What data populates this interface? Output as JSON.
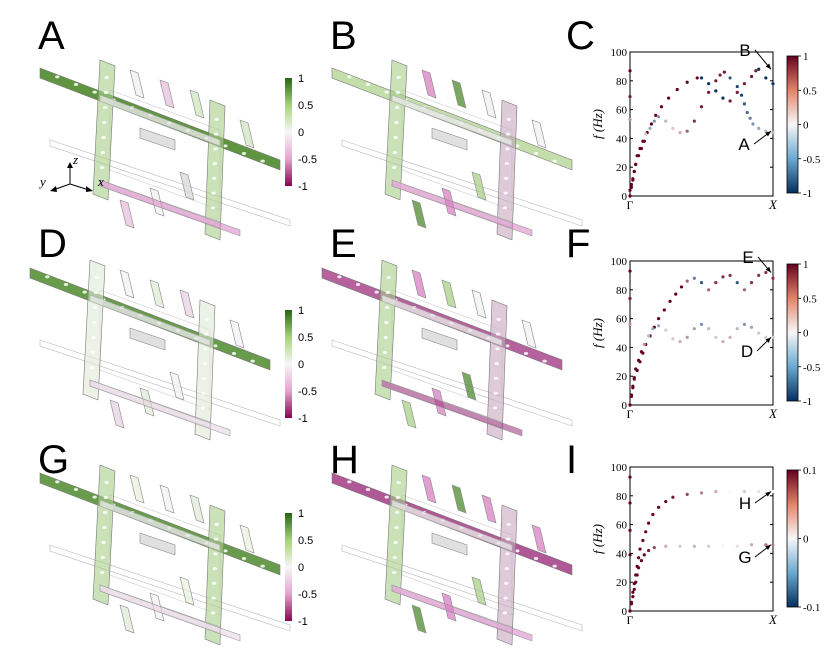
{
  "panels": [
    {
      "letter": "A",
      "kind": "mode"
    },
    {
      "letter": "B",
      "kind": "mode"
    },
    {
      "letter": "C",
      "kind": "chart"
    },
    {
      "letter": "D",
      "kind": "mode"
    },
    {
      "letter": "E",
      "kind": "mode"
    },
    {
      "letter": "F",
      "kind": "chart"
    },
    {
      "letter": "G",
      "kind": "mode"
    },
    {
      "letter": "H",
      "kind": "mode"
    },
    {
      "letter": "I",
      "kind": "chart"
    }
  ],
  "axes_triad": {
    "z": "z",
    "y": "y",
    "x": "x"
  },
  "mode_colorbar": {
    "ticks": [
      "1",
      "0.5",
      "0",
      "-0.5",
      "-1"
    ],
    "colors": {
      "high": "#276419",
      "mid": "#f7f7f7",
      "low": "#8e0152"
    }
  },
  "chart_data": [
    {
      "type": "scatter",
      "panel": "C",
      "ylabel": "f (Hz)",
      "x_ticks": [
        "Γ",
        "X"
      ],
      "y_ticks": [
        "0",
        "20",
        "40",
        "60",
        "80",
        "100"
      ],
      "ylim": [
        0,
        100
      ],
      "colorbar": {
        "ticks": [
          "1",
          "0.5",
          "0",
          "-0.5",
          "-1"
        ],
        "range": [
          -1,
          1
        ],
        "colors": {
          "high": "#67001f",
          "mid": "#f7f7f7",
          "low": "#053061"
        }
      },
      "series": [
        {
          "points": [
            [
              0.0,
              0,
              1
            ],
            [
              0.0,
              4,
              1
            ],
            [
              0.01,
              8,
              1
            ],
            [
              0.02,
              12,
              1
            ],
            [
              0.03,
              17,
              1
            ],
            [
              0.04,
              22,
              1
            ],
            [
              0.06,
              28,
              1
            ],
            [
              0.08,
              33,
              1
            ],
            [
              0.1,
              38,
              1
            ],
            [
              0.12,
              44,
              1
            ],
            [
              0.15,
              50,
              1
            ],
            [
              0.18,
              56,
              1
            ],
            [
              0.22,
              62,
              1
            ],
            [
              0.27,
              68,
              1
            ],
            [
              0.33,
              74,
              1
            ],
            [
              0.4,
              79,
              1
            ],
            [
              0.47,
              82,
              1
            ],
            [
              0.5,
              82,
              -1
            ],
            [
              0.55,
              78,
              -1
            ],
            [
              0.6,
              73,
              -1
            ],
            [
              0.65,
              68,
              -1
            ],
            [
              0.7,
              66,
              0.9
            ],
            [
              0.75,
              72,
              0.9
            ],
            [
              0.8,
              78,
              0.9
            ],
            [
              0.85,
              83,
              0.9
            ],
            [
              0.88,
              87,
              0.9
            ],
            [
              0.9,
              88,
              -1
            ],
            [
              0.95,
              82,
              -1
            ],
            [
              1.0,
              78,
              -1
            ]
          ]
        },
        {
          "points": [
            [
              0.0,
              0,
              1
            ],
            [
              0.01,
              6,
              1
            ],
            [
              0.02,
              11,
              1
            ],
            [
              0.03,
              17,
              1
            ],
            [
              0.04,
              22,
              1
            ],
            [
              0.05,
              28,
              1
            ],
            [
              0.07,
              33,
              1
            ],
            [
              0.09,
              38,
              1
            ],
            [
              0.11,
              43,
              0.2
            ],
            [
              0.14,
              47,
              -0.4
            ],
            [
              0.17,
              52,
              -0.5
            ],
            [
              0.2,
              55,
              -0.5
            ],
            [
              0.25,
              52,
              -0.3
            ],
            [
              0.3,
              47,
              0.2
            ],
            [
              0.35,
              44,
              0.3
            ],
            [
              0.4,
              45,
              0.6
            ],
            [
              0.45,
              52,
              0.8
            ],
            [
              0.5,
              62,
              0.9
            ],
            [
              0.55,
              72,
              0.9
            ],
            [
              0.6,
              80,
              0.9
            ],
            [
              0.63,
              84,
              0.9
            ],
            [
              0.66,
              86,
              0.9
            ],
            [
              0.7,
              82,
              -0.8
            ],
            [
              0.75,
              76,
              -0.9
            ],
            [
              0.78,
              70,
              -0.9
            ],
            [
              0.8,
              64,
              -0.8
            ],
            [
              0.82,
              58,
              -0.7
            ],
            [
              0.84,
              54,
              -0.6
            ],
            [
              0.86,
              50,
              -0.5
            ],
            [
              0.9,
              47,
              -0.4
            ],
            [
              0.95,
              45,
              -0.3
            ],
            [
              1.0,
              44,
              -0.3
            ]
          ]
        },
        {
          "points": [
            [
              0.0,
              87,
              1
            ],
            [
              0.0,
              69,
              0.9
            ],
            [
              0.0,
              53,
              0.4
            ]
          ]
        }
      ],
      "annotations": [
        {
          "label": "B",
          "target": [
            1.0,
            88
          ]
        },
        {
          "label": "A",
          "target": [
            1.0,
            45
          ]
        }
      ]
    },
    {
      "type": "scatter",
      "panel": "F",
      "ylabel": "f (Hz)",
      "x_ticks": [
        "Γ",
        "X"
      ],
      "y_ticks": [
        "0",
        "20",
        "40",
        "60",
        "80",
        "100"
      ],
      "ylim": [
        0,
        100
      ],
      "colorbar": {
        "ticks": [
          "1",
          "0.5",
          "0",
          "-0.5",
          "-1"
        ],
        "range": [
          -1,
          1
        ],
        "colors": {
          "high": "#67001f",
          "mid": "#f7f7f7",
          "low": "#053061"
        }
      },
      "series": [
        {
          "points": [
            [
              0.0,
              0,
              1
            ],
            [
              0.01,
              6,
              1
            ],
            [
              0.02,
              12,
              1
            ],
            [
              0.03,
              18,
              1
            ],
            [
              0.05,
              24,
              1
            ],
            [
              0.07,
              30,
              1
            ],
            [
              0.09,
              36,
              1
            ],
            [
              0.11,
              42,
              1
            ],
            [
              0.14,
              48,
              1
            ],
            [
              0.17,
              54,
              1
            ],
            [
              0.2,
              60,
              1
            ],
            [
              0.24,
              66,
              1
            ],
            [
              0.28,
              72,
              1
            ],
            [
              0.32,
              77,
              1
            ],
            [
              0.36,
              82,
              1
            ],
            [
              0.4,
              86,
              0.6
            ],
            [
              0.45,
              88,
              -0.6
            ],
            [
              0.5,
              85,
              -0.8
            ],
            [
              0.55,
              80,
              0.6
            ],
            [
              0.6,
              85,
              0.8
            ],
            [
              0.65,
              89,
              0.8
            ],
            [
              0.7,
              90,
              0.8
            ],
            [
              0.75,
              85,
              -0.8
            ],
            [
              0.8,
              80,
              0.6
            ],
            [
              0.85,
              85,
              0.8
            ],
            [
              0.9,
              90,
              0.8
            ],
            [
              0.95,
              92,
              0.8
            ],
            [
              1.0,
              88,
              0.8
            ]
          ]
        },
        {
          "points": [
            [
              0.0,
              0,
              1
            ],
            [
              0.01,
              7,
              1
            ],
            [
              0.02,
              13,
              1
            ],
            [
              0.03,
              19,
              1
            ],
            [
              0.04,
              25,
              1
            ],
            [
              0.06,
              31,
              1
            ],
            [
              0.08,
              37,
              1
            ],
            [
              0.1,
              42,
              0.4
            ],
            [
              0.13,
              48,
              -0.3
            ],
            [
              0.16,
              53,
              -0.4
            ],
            [
              0.2,
              55,
              -0.4
            ],
            [
              0.25,
              52,
              -0.2
            ],
            [
              0.3,
              46,
              0.2
            ],
            [
              0.35,
              44,
              0.3
            ],
            [
              0.4,
              47,
              0.4
            ],
            [
              0.45,
              53,
              -0.4
            ],
            [
              0.5,
              56,
              -0.5
            ],
            [
              0.55,
              53,
              -0.3
            ],
            [
              0.6,
              47,
              0.2
            ],
            [
              0.65,
              44,
              0.3
            ],
            [
              0.7,
              47,
              0.3
            ],
            [
              0.75,
              53,
              -0.3
            ],
            [
              0.8,
              56,
              -0.5
            ],
            [
              0.85,
              54,
              -0.4
            ],
            [
              0.9,
              50,
              0.2
            ],
            [
              0.95,
              47,
              0.2
            ],
            [
              1.0,
              47,
              0.2
            ]
          ]
        },
        {
          "points": [
            [
              0.0,
              93,
              1
            ],
            [
              0.0,
              74,
              0.9
            ],
            [
              0.0,
              56,
              0.4
            ]
          ]
        }
      ],
      "annotations": [
        {
          "label": "E",
          "target": [
            1.0,
            92
          ]
        },
        {
          "label": "D",
          "target": [
            1.0,
            47
          ]
        }
      ]
    },
    {
      "type": "scatter",
      "panel": "I",
      "ylabel": "f (Hz)",
      "x_ticks": [
        "Γ",
        "X"
      ],
      "y_ticks": [
        "0",
        "20",
        "40",
        "60",
        "80",
        "100"
      ],
      "ylim": [
        0,
        100
      ],
      "colorbar": {
        "ticks": [
          "0.1",
          "0",
          "-0.1"
        ],
        "range": [
          -0.1,
          0.1
        ],
        "colors": {
          "high": "#67001f",
          "mid": "#f7f7f7",
          "low": "#053061"
        }
      },
      "series": [
        {
          "points": [
            [
              0.0,
              0,
              0.1
            ],
            [
              0.01,
              6,
              0.1
            ],
            [
              0.02,
              13,
              0.1
            ],
            [
              0.03,
              19,
              0.1
            ],
            [
              0.04,
              25,
              0.1
            ],
            [
              0.05,
              31,
              0.1
            ],
            [
              0.06,
              37,
              0.1
            ],
            [
              0.07,
              43,
              0.1
            ],
            [
              0.09,
              49,
              0.1
            ],
            [
              0.11,
              55,
              0.1
            ],
            [
              0.13,
              61,
              0.1
            ],
            [
              0.16,
              67,
              0.1
            ],
            [
              0.2,
              72,
              0.1
            ],
            [
              0.25,
              76,
              0.1
            ],
            [
              0.3,
              79,
              0.09
            ],
            [
              0.4,
              81,
              0.07
            ],
            [
              0.5,
              82,
              0.05
            ],
            [
              0.6,
              83,
              0.03
            ],
            [
              0.7,
              83,
              0.0
            ],
            [
              0.8,
              83,
              -0.02
            ],
            [
              0.9,
              83,
              -0.01
            ],
            [
              1.0,
              83,
              0.0
            ]
          ]
        },
        {
          "points": [
            [
              0.0,
              0,
              0.1
            ],
            [
              0.01,
              5,
              0.1
            ],
            [
              0.02,
              10,
              0.1
            ],
            [
              0.03,
              15,
              0.1
            ],
            [
              0.04,
              20,
              0.1
            ],
            [
              0.05,
              25,
              0.1
            ],
            [
              0.06,
              30,
              0.1
            ],
            [
              0.08,
              35,
              0.1
            ],
            [
              0.1,
              39,
              0.1
            ],
            [
              0.13,
              42,
              0.09
            ],
            [
              0.17,
              44,
              0.07
            ],
            [
              0.25,
              45,
              0.03
            ],
            [
              0.35,
              45,
              -0.02
            ],
            [
              0.45,
              45,
              -0.03
            ],
            [
              0.55,
              45,
              -0.02
            ],
            [
              0.65,
              45,
              0.0
            ],
            [
              0.75,
              45,
              0.01
            ],
            [
              0.85,
              46,
              0.03
            ],
            [
              0.95,
              46,
              0.05
            ],
            [
              1.0,
              46,
              0.05
            ]
          ]
        },
        {
          "points": [
            [
              0.0,
              93,
              0.1
            ],
            [
              0.0,
              75,
              0.1
            ],
            [
              0.0,
              56,
              0.1
            ],
            [
              0.0,
              39,
              0.1
            ]
          ]
        }
      ],
      "annotations": [
        {
          "label": "H",
          "target": [
            1.0,
            83
          ]
        },
        {
          "label": "G",
          "target": [
            1.0,
            46
          ]
        }
      ]
    }
  ]
}
